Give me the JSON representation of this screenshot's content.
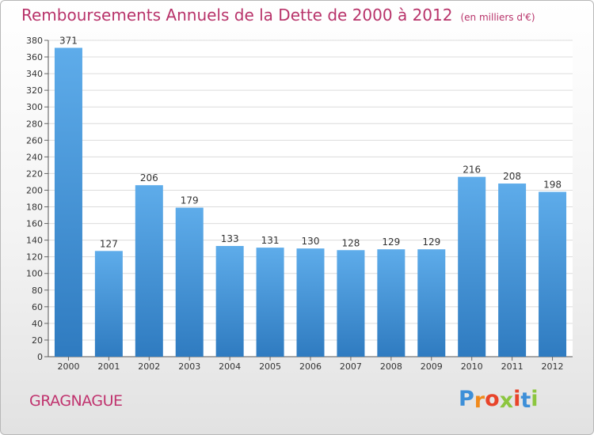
{
  "chart_data": {
    "type": "bar",
    "title": "Remboursements Annuels de la Dette de 2000 à 2012",
    "subtitle": "(en milliers d'€)",
    "categories": [
      "2000",
      "2001",
      "2002",
      "2003",
      "2004",
      "2005",
      "2006",
      "2007",
      "2008",
      "2009",
      "2010",
      "2011",
      "2012"
    ],
    "values": [
      371,
      127,
      206,
      179,
      133,
      131,
      130,
      128,
      129,
      129,
      216,
      208,
      198
    ],
    "xlabel": "",
    "ylabel": "",
    "ylim": [
      0,
      380
    ],
    "ytick_step": 20,
    "grid": true,
    "bar_color": "#4a97d6"
  },
  "footer": {
    "commune": "GRAGNAGUE",
    "logo_letters": [
      "P",
      "r",
      "o",
      "x",
      "i",
      "t",
      "i"
    ],
    "logo_colors": [
      "#3d8fd8",
      "#f08a1c",
      "#e8442a",
      "#8cc63f",
      "#e8442a",
      "#3d8fd8",
      "#8cc63f"
    ]
  }
}
